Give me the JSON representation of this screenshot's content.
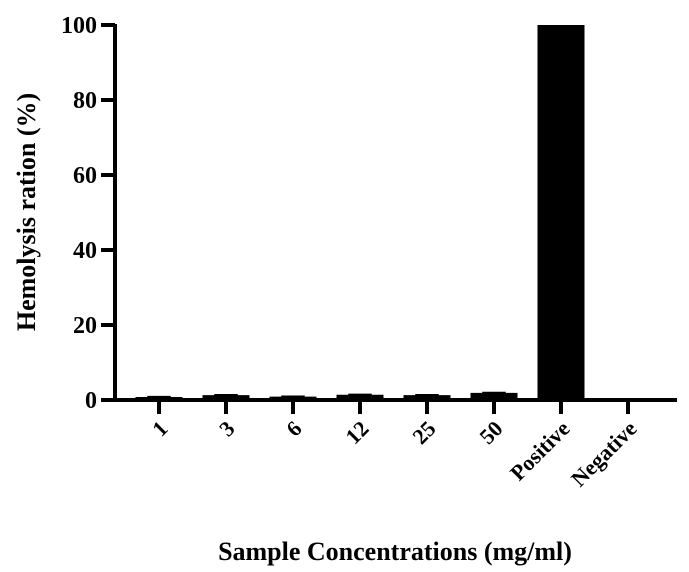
{
  "chart_data": {
    "type": "bar",
    "title": "",
    "xlabel": "Sample Concentrations (mg/ml)",
    "ylabel": "Hemolysis ration (%)",
    "categories": [
      "1",
      "3",
      "6",
      "12",
      "25",
      "50",
      "Positive",
      "Negative"
    ],
    "values": [
      0.8,
      1.3,
      0.9,
      1.4,
      1.3,
      1.9,
      100,
      0
    ],
    "error": [
      0.3,
      0.3,
      0.3,
      0.3,
      0.3,
      0.3,
      0,
      0
    ],
    "ylim": [
      0,
      100
    ],
    "yticks": [
      0,
      20,
      40,
      60,
      80,
      100
    ],
    "grid": false,
    "legend": null,
    "bar_color": "#000000"
  }
}
